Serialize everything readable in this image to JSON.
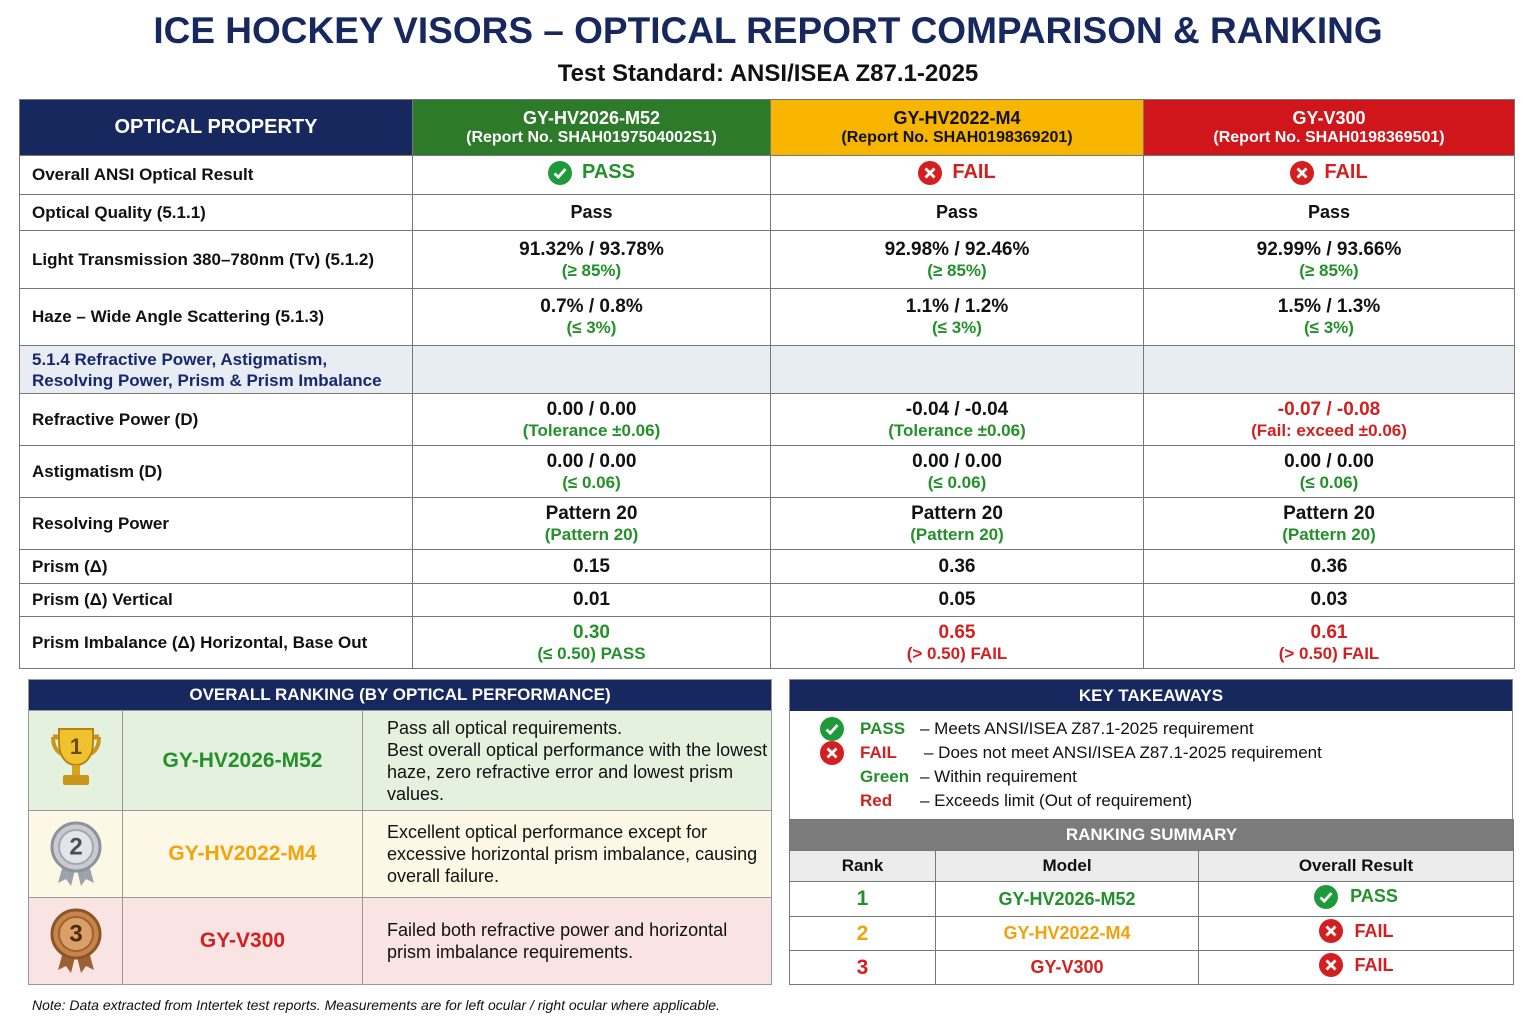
{
  "header": {
    "title": "ICE HOCKEY VISORS – OPTICAL REPORT COMPARISON & RANKING",
    "subtitle": "Test Standard: ANSI/ISEA Z87.1-2025"
  },
  "table": {
    "property_header": "OPTICAL PROPERTY",
    "models": [
      {
        "name": "GY-HV2026-M52",
        "report": "(Report No. SHAH0197504002S1)"
      },
      {
        "name": "GY-HV2022-M4",
        "report": "(Report No. SHAH0198369201)"
      },
      {
        "name": "GY-V300",
        "report": "(Report No. SHAH0198369501)"
      }
    ],
    "rows": [
      {
        "label": "Overall ANSI Optical Result",
        "cells": [
          {
            "value": "PASS"
          },
          {
            "value": "FAIL"
          },
          {
            "value": "FAIL"
          }
        ]
      },
      {
        "label": "Optical Quality (5.1.1)",
        "cells": [
          {
            "value": "Pass"
          },
          {
            "value": "Pass"
          },
          {
            "value": "Pass"
          }
        ]
      },
      {
        "label": "Light Transmission 380–780nm (Tv) (5.1.2)",
        "cells": [
          {
            "value": "91.32% / 93.78%",
            "note": "(≥ 85%)"
          },
          {
            "value": "92.98% / 92.46%",
            "note": "(≥ 85%)"
          },
          {
            "value": "92.99% / 93.66%",
            "note": "(≥ 85%)"
          }
        ]
      },
      {
        "label": "Haze – Wide Angle Scattering (5.1.3)",
        "cells": [
          {
            "value": "0.7% / 0.8%",
            "note": "(≤ 3%)"
          },
          {
            "value": "1.1% / 1.2%",
            "note": "(≤ 3%)"
          },
          {
            "value": "1.5% / 1.3%",
            "note": "(≤ 3%)"
          }
        ]
      },
      {
        "label": "5.1.4 Refractive Power, Astigmatism, Resolving Power, Prism & Prism Imbalance"
      },
      {
        "label": "Refractive Power (D)",
        "cells": [
          {
            "value": "0.00 / 0.00",
            "note": "(Tolerance ±0.06)"
          },
          {
            "value": "-0.04 / -0.04",
            "note": "(Tolerance ±0.06)"
          },
          {
            "value": "-0.07 / -0.08",
            "note": "(Fail: exceed ±0.06)"
          }
        ]
      },
      {
        "label": "Astigmatism (D)",
        "cells": [
          {
            "value": "0.00 / 0.00",
            "note": "(≤ 0.06)"
          },
          {
            "value": "0.00 / 0.00",
            "note": "(≤ 0.06)"
          },
          {
            "value": "0.00 / 0.00",
            "note": "(≤ 0.06)"
          }
        ]
      },
      {
        "label": "Resolving Power",
        "cells": [
          {
            "value": "Pattern 20",
            "note": "(Pattern 20)"
          },
          {
            "value": "Pattern 20",
            "note": "(Pattern 20)"
          },
          {
            "value": "Pattern 20",
            "note": "(Pattern 20)"
          }
        ]
      },
      {
        "label": "Prism (Δ)",
        "cells": [
          {
            "value": "0.15"
          },
          {
            "value": "0.36"
          },
          {
            "value": "0.36"
          }
        ]
      },
      {
        "label": "Prism (Δ) Vertical",
        "cells": [
          {
            "value": "0.01"
          },
          {
            "value": "0.05"
          },
          {
            "value": "0.03"
          }
        ]
      },
      {
        "label": "Prism Imbalance (Δ) Horizontal, Base Out",
        "cells": [
          {
            "value": "0.30",
            "note": "(≤ 0.50) PASS"
          },
          {
            "value": "0.65",
            "note": "(> 0.50) FAIL"
          },
          {
            "value": "0.61",
            "note": "(> 0.50) FAIL"
          }
        ]
      }
    ]
  },
  "ranking": {
    "title": "OVERALL RANKING (BY OPTICAL PERFORMANCE)",
    "items": [
      {
        "rank": 1,
        "model": "GY-HV2026-M52",
        "description": [
          "Pass all optical requirements.",
          "Best overall optical performance with the lowest haze, zero refractive error and lowest prism values."
        ]
      },
      {
        "rank": 2,
        "model": "GY-HV2022-M4",
        "description": [
          "Excellent optical performance except for excessive horizontal prism imbalance, causing overall failure."
        ]
      },
      {
        "rank": 3,
        "model": "GY-V300",
        "description": [
          "Failed both refractive power and horizontal prism imbalance requirements."
        ]
      }
    ]
  },
  "takeaways": {
    "title": "KEY TAKEAWAYS",
    "items": [
      {
        "term": "PASS",
        "text": "– Meets ANSI/ISEA Z87.1-2025 requirement"
      },
      {
        "term": "FAIL",
        "text": "– Does not meet ANSI/ISEA Z87.1-2025 requirement"
      },
      {
        "term": "Green",
        "text": "– Within requirement"
      },
      {
        "term": "Red",
        "text": "– Exceeds limit (Out of requirement)"
      }
    ]
  },
  "summary": {
    "title": "RANKING SUMMARY",
    "columns": [
      "Rank",
      "Model",
      "Overall Result"
    ],
    "rows": [
      {
        "rank": 1,
        "model": "GY-HV2026-M52",
        "result": "PASS"
      },
      {
        "rank": 2,
        "model": "GY-HV2022-M4",
        "result": "FAIL"
      },
      {
        "rank": 3,
        "model": "GY-V300",
        "result": "FAIL"
      }
    ]
  },
  "note": "Note: Data extracted from Intertek test reports. Measurements are for left ocular / right ocular where applicable."
}
